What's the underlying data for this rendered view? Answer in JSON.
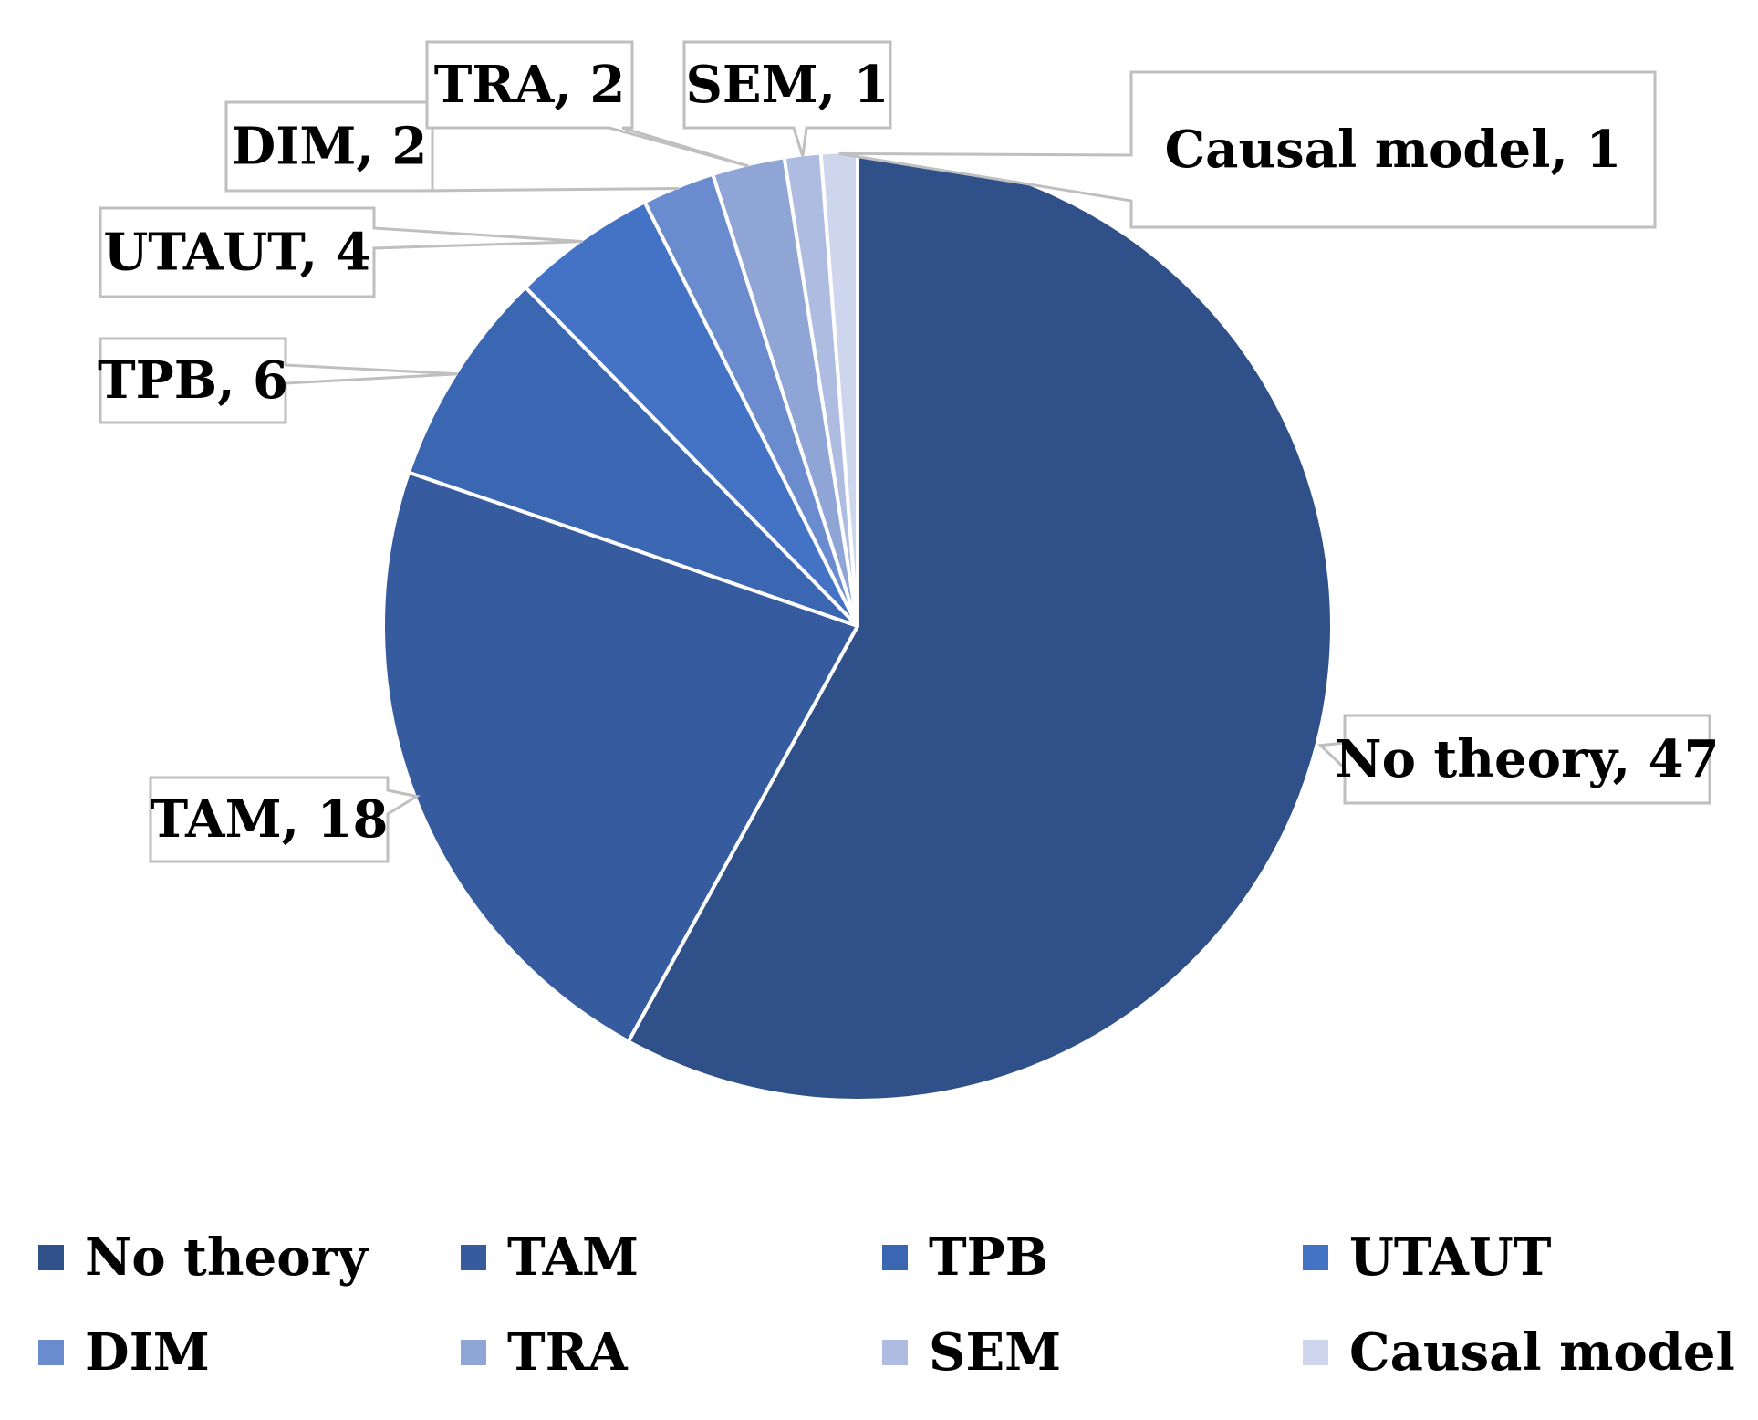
{
  "chart_data": {
    "type": "pie",
    "title": "",
    "start_angle_deg": 0,
    "direction": "clockwise",
    "categories": [
      "No theory",
      "TAM",
      "TPB",
      "UTAUT",
      "DIM",
      "TRA",
      "SEM",
      "Causal model"
    ],
    "values": [
      47,
      18,
      6,
      4,
      2,
      2,
      1,
      1
    ],
    "data_labels": [
      "No theory, 47",
      "TAM, 18",
      "TPB, 6",
      "UTAUT, 4",
      "DIM, 2",
      "TRA, 2",
      "SEM, 1",
      "Causal model, 1"
    ],
    "colors": [
      "#2F5089",
      "#365C9F",
      "#3B66B2",
      "#4472C4",
      "#6A8BCD",
      "#8FA5D6",
      "#ADBCE0",
      "#CDD6EC"
    ],
    "legend": {
      "position": "bottom",
      "entries": [
        "No theory",
        "TAM",
        "TPB",
        "UTAUT",
        "DIM",
        "TRA",
        "SEM",
        "Causal model"
      ]
    }
  }
}
